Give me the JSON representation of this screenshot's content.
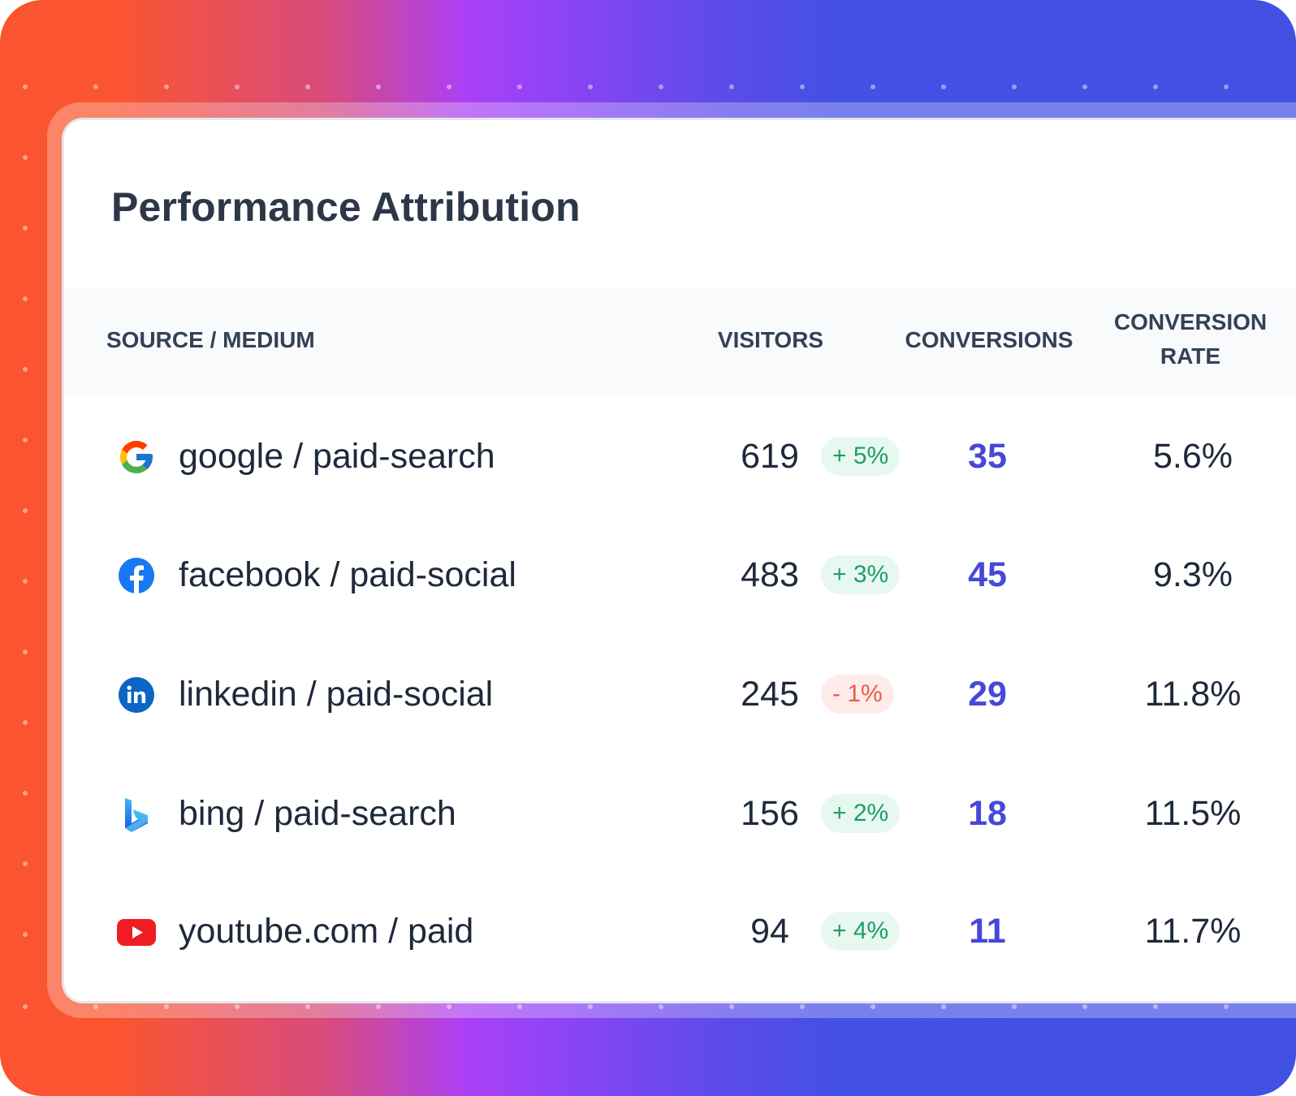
{
  "title": "Performance Attribution",
  "columns": {
    "source": "SOURCE / MEDIUM",
    "visitors": "VISITORS",
    "conversions": "CONVERSIONS",
    "rate_line1": "CONVERSION",
    "rate_line2": "RATE"
  },
  "colors": {
    "accent": "#4548d8",
    "positive": "#1f9d6c",
    "negative": "#ec5b4a"
  },
  "rows": [
    {
      "icon": "google-icon",
      "source": "google / paid-search",
      "visitors": "619",
      "change": "+ 5%",
      "trend": "up",
      "conversions": "35",
      "rate": "5.6%"
    },
    {
      "icon": "facebook-icon",
      "source": "facebook / paid-social",
      "visitors": "483",
      "change": "+ 3%",
      "trend": "up",
      "conversions": "45",
      "rate": "9.3%"
    },
    {
      "icon": "linkedin-icon",
      "source": "linkedin / paid-social",
      "visitors": "245",
      "change": "- 1%",
      "trend": "down",
      "conversions": "29",
      "rate": "11.8%"
    },
    {
      "icon": "bing-icon",
      "source": "bing / paid-search",
      "visitors": "156",
      "change": "+ 2%",
      "trend": "up",
      "conversions": "18",
      "rate": "11.5%"
    },
    {
      "icon": "youtube-icon",
      "source": "youtube.com / paid",
      "visitors": "94",
      "change": "+ 4%",
      "trend": "up",
      "conversions": "11",
      "rate": "11.7%"
    }
  ]
}
